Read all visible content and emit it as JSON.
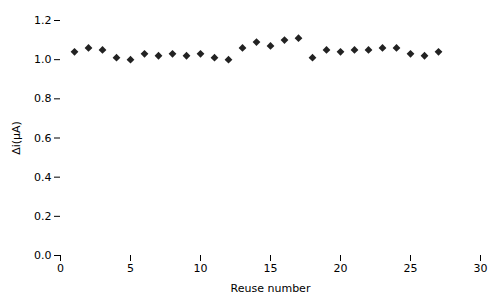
{
  "chart_data": {
    "type": "scatter",
    "x": [
      1,
      2,
      3,
      4,
      5,
      6,
      7,
      8,
      9,
      10,
      11,
      12,
      13,
      14,
      15,
      16,
      17,
      18,
      19,
      20,
      21,
      22,
      23,
      24,
      25,
      26,
      27
    ],
    "values": [
      1.04,
      1.06,
      1.05,
      1.01,
      1.0,
      1.03,
      1.02,
      1.03,
      1.02,
      1.03,
      1.01,
      1.0,
      1.06,
      1.09,
      1.07,
      1.1,
      1.11,
      1.01,
      1.05,
      1.04,
      1.05,
      1.05,
      1.06,
      1.06,
      1.03,
      1.02,
      1.04
    ],
    "color": "#222222",
    "marker": "diamond",
    "xlabel": "Reuse number",
    "ylabel": "Δi(μA)",
    "xlim": [
      0,
      30
    ],
    "ylim": [
      0,
      1.2
    ],
    "xticks": [
      0,
      5,
      10,
      15,
      20,
      25,
      30
    ],
    "yticks": [
      {
        "value": 0,
        "label": "0.0"
      },
      0.2,
      0.4,
      0.6,
      0.8,
      {
        "value": 1.0,
        "label": "1.0"
      },
      1.2
    ]
  }
}
